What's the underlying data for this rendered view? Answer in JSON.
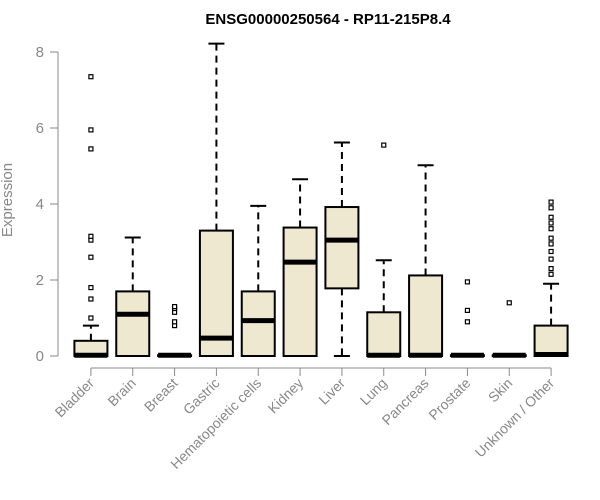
{
  "chart_data": {
    "type": "boxplot",
    "title": "ENSG00000250564 - RP11-215P8.4",
    "ylabel": "Expression",
    "xlabel": "",
    "ylim": [
      0,
      8.2
    ],
    "yticks": [
      0,
      2,
      4,
      6,
      8
    ],
    "box_fill": "#efe8d0",
    "axis_color": "#888888",
    "categories": [
      "Bladder",
      "Brain",
      "Breast",
      "Gastric",
      "Hematopoietic cells",
      "Kidney",
      "Liver",
      "Lung",
      "Pancreas",
      "Prostate",
      "Skin",
      "Unknown / Other"
    ],
    "boxes": [
      {
        "min": 0,
        "q1": 0,
        "median": 0.02,
        "q3": 0.4,
        "max": 0.8,
        "outliers": [
          1.0,
          1.5,
          1.8,
          2.6,
          3.05,
          3.15,
          5.45,
          5.95,
          7.35
        ]
      },
      {
        "min": 0,
        "q1": 0,
        "median": 1.1,
        "q3": 1.7,
        "max": 3.12,
        "outliers": []
      },
      {
        "min": 0,
        "q1": 0,
        "median": 0.02,
        "q3": 0.02,
        "max": 0.02,
        "outliers": [
          0.8,
          0.9,
          1.15,
          1.25,
          1.3
        ]
      },
      {
        "min": 0,
        "q1": 0,
        "median": 0.47,
        "q3": 3.3,
        "max": 8.22,
        "outliers": []
      },
      {
        "min": 0,
        "q1": 0,
        "median": 0.93,
        "q3": 1.7,
        "max": 3.95,
        "outliers": []
      },
      {
        "min": 0,
        "q1": 0,
        "median": 2.47,
        "q3": 3.38,
        "max": 4.65,
        "outliers": []
      },
      {
        "min": 0,
        "q1": 1.78,
        "median": 3.05,
        "q3": 3.92,
        "max": 5.62,
        "outliers": []
      },
      {
        "min": 0,
        "q1": 0,
        "median": 0.02,
        "q3": 1.15,
        "max": 2.52,
        "outliers": [
          5.55
        ]
      },
      {
        "min": 0,
        "q1": 0,
        "median": 0.02,
        "q3": 2.12,
        "max": 5.02,
        "outliers": []
      },
      {
        "min": 0,
        "q1": 0,
        "median": 0.02,
        "q3": 0.02,
        "max": 0.02,
        "outliers": [
          0.9,
          1.2,
          1.95
        ]
      },
      {
        "min": 0,
        "q1": 0,
        "median": 0.02,
        "q3": 0.02,
        "max": 0.02,
        "outliers": [
          1.4
        ]
      },
      {
        "min": 0,
        "q1": 0,
        "median": 0.04,
        "q3": 0.8,
        "max": 1.9,
        "outliers": [
          2.15,
          2.3,
          2.55,
          2.75,
          2.95,
          3.1,
          3.35,
          3.5,
          3.65,
          3.9,
          4.05
        ]
      }
    ]
  }
}
